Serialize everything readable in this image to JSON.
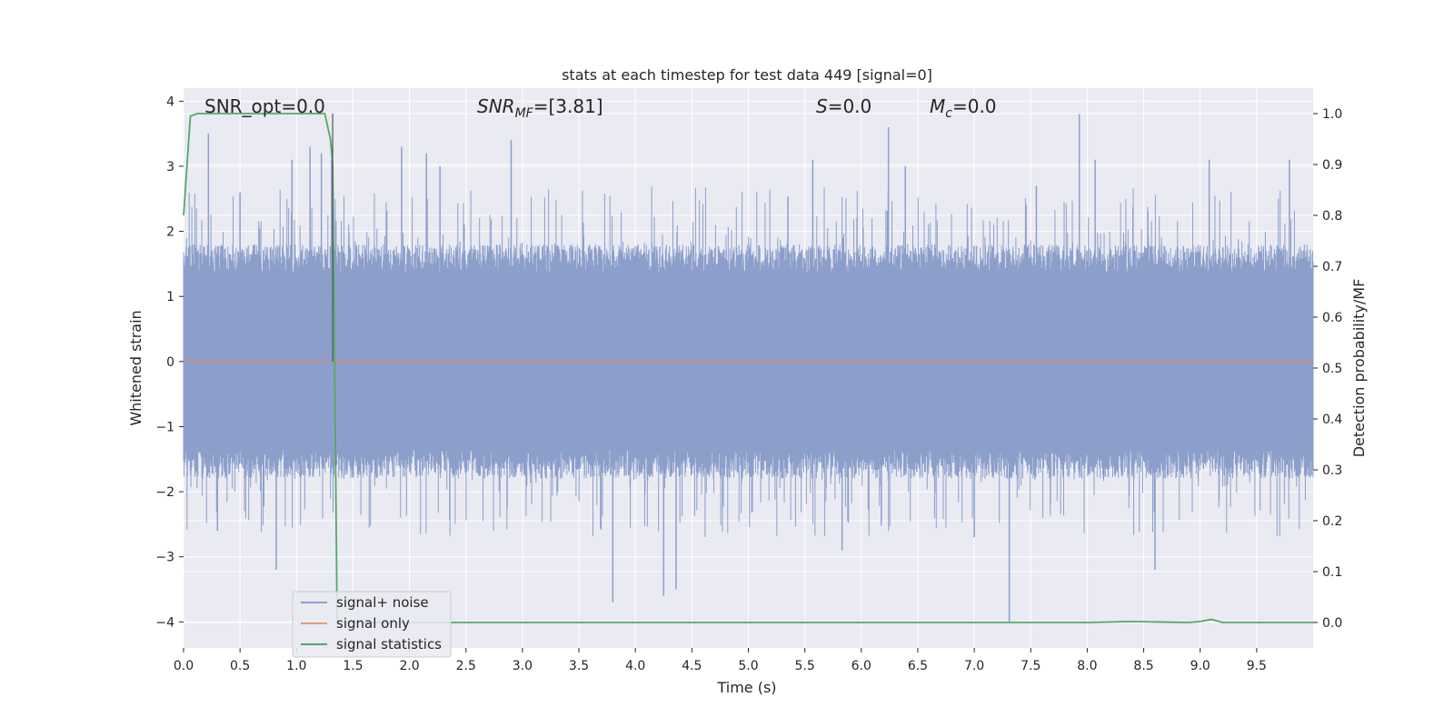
{
  "chart_data": {
    "type": "line",
    "title": "stats at each timestep for test data 449 [signal=0]",
    "xlabel": "Time (s)",
    "ylabel": "Whitened strain",
    "ylabel_right": "Detection probability/MF",
    "xlim": [
      0.0,
      10.0
    ],
    "ylim": [
      -4.4,
      4.2
    ],
    "ylim_right": [
      -0.05,
      1.05
    ],
    "x_ticks": [
      "0.0",
      "0.5",
      "1.0",
      "1.5",
      "2.0",
      "2.5",
      "3.0",
      "3.5",
      "4.0",
      "4.5",
      "5.0",
      "5.5",
      "6.0",
      "6.5",
      "7.0",
      "7.5",
      "8.0",
      "8.5",
      "9.0",
      "9.5"
    ],
    "y_ticks": [
      "4",
      "3",
      "2",
      "1",
      "0",
      "−1",
      "−2",
      "−3",
      "−4"
    ],
    "y_ticks_right": [
      "1.0",
      "0.9",
      "0.8",
      "0.7",
      "0.6",
      "0.5",
      "0.4",
      "0.3",
      "0.2",
      "0.1",
      "0.0"
    ],
    "grid": true,
    "annotations": {
      "snr_opt": "SNR_opt=0.0",
      "snr_mf_main": "SNR",
      "snr_mf_sub": "MF",
      "snr_mf_value": "=[3.81]",
      "s_main": "S",
      "s_value": "=0.0",
      "mc_main": "M",
      "mc_sub": "c",
      "mc_value": "=0.0"
    },
    "legend_position": "lower-left",
    "colors": {
      "signal_noise": "#8c9fcb",
      "signal_only": "#dd8452",
      "signal_statistics": "#55a868",
      "background": "#eaeaf2",
      "grid": "#ffffff"
    },
    "series": [
      {
        "name": "signal+ noise",
        "style": "noise band, roughly ±1.5 with peaks to ±3.8",
        "peaks_x": [
          0.22,
          0.3,
          0.5,
          0.82,
          0.96,
          1.12,
          1.22,
          1.31,
          1.93,
          2.15,
          2.27,
          2.9,
          3.8,
          4.25,
          4.36,
          5.57,
          5.83,
          6.24,
          6.39,
          7.0,
          7.31,
          7.55,
          7.93,
          8.07,
          8.6,
          9.08,
          9.79
        ],
        "peaks_y": [
          3.5,
          -2.6,
          2.6,
          -3.2,
          3.1,
          3.3,
          3.2,
          3.1,
          3.3,
          3.2,
          3.0,
          3.4,
          -3.7,
          -3.6,
          -3.5,
          3.1,
          -2.9,
          3.6,
          3.0,
          -2.7,
          -4.0,
          2.7,
          3.8,
          3.1,
          -3.2,
          3.1,
          3.1
        ]
      },
      {
        "name": "signal only",
        "x": [
          0.0,
          10.0
        ],
        "y": [
          0.0,
          0.0
        ]
      },
      {
        "name": "signal statistics",
        "axis": "right",
        "x": [
          0.0,
          0.06,
          0.12,
          0.5,
          1.0,
          1.25,
          1.3,
          1.32,
          1.36,
          1.4,
          2.0,
          4.0,
          6.0,
          8.0,
          8.4,
          8.9,
          9.0,
          9.1,
          9.2,
          9.5,
          10.0
        ],
        "y": [
          0.8,
          0.995,
          1.0,
          1.0,
          1.0,
          1.0,
          0.95,
          0.9,
          0.0,
          0.0,
          0.0,
          0.0,
          0.0,
          0.0,
          0.002,
          0.0,
          0.002,
          0.006,
          0.0,
          0.0,
          0.0
        ]
      }
    ]
  }
}
